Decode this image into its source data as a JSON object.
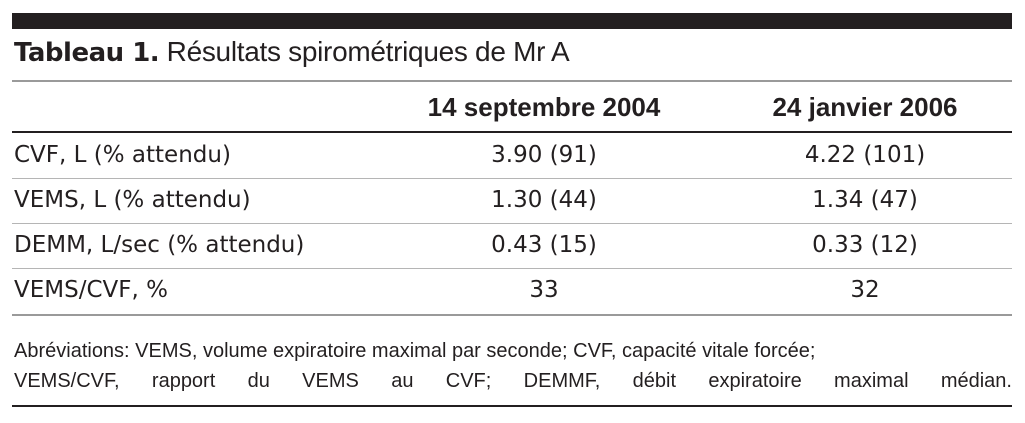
{
  "table": {
    "title_label": "Tableau 1.",
    "title_text": " Résultats spirométriques de Mr A",
    "columns": [
      "",
      "14 septembre 2004",
      "24 janvier 2006"
    ],
    "rows": [
      {
        "label": "CVF, L (% attendu)",
        "values": [
          "3.90 (91)",
          "4.22 (101)"
        ]
      },
      {
        "label": "VEMS, L (% attendu)",
        "values": [
          "1.30 (44)",
          "1.34 (47)"
        ]
      },
      {
        "label": "DEMM, L/sec (% attendu)",
        "values": [
          "0.43 (15)",
          "0.33 (12)"
        ]
      },
      {
        "label": "VEMS/CVF, %",
        "values": [
          "33",
          "32"
        ]
      }
    ],
    "footnote_lines": [
      "Abréviations: VEMS, volume expiratoire maximal par seconde; CVF, capacité vitale forcée;",
      "VEMS/CVF, rapport du VEMS au CVF; DEMMF, débit expiratoire maximal médian."
    ]
  }
}
